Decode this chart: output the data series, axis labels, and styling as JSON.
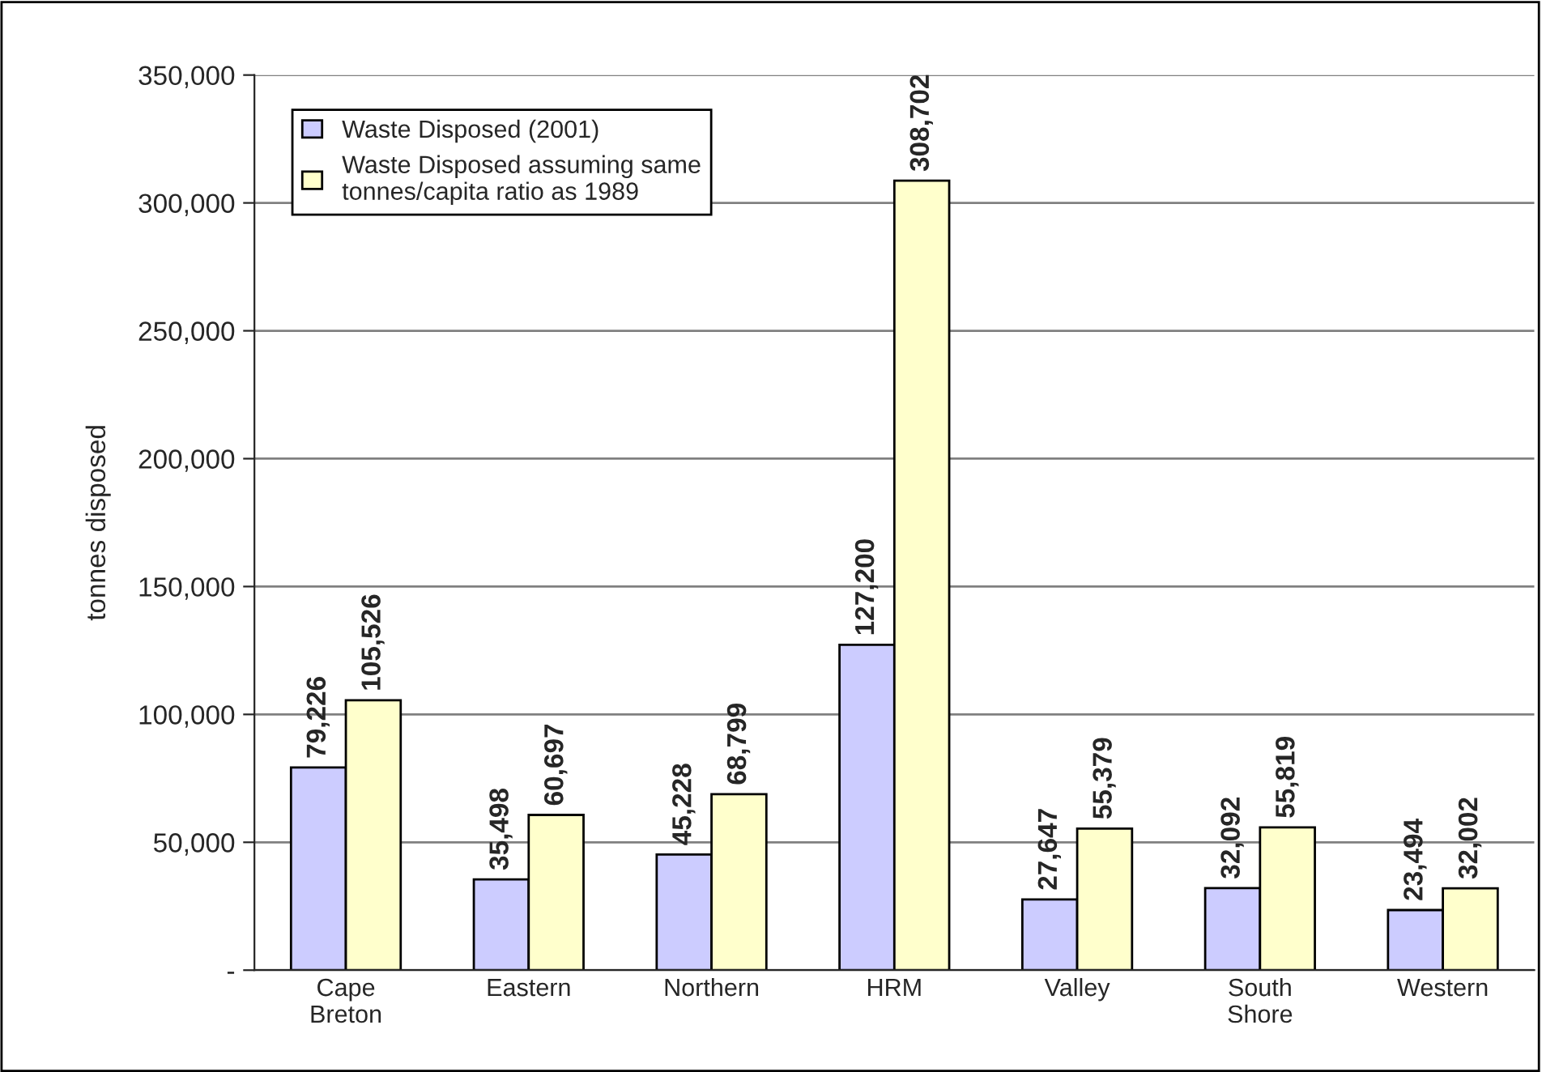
{
  "chart_data": {
    "type": "bar",
    "ylabel": "tonnes disposed",
    "categories": [
      "Cape Breton",
      "Eastern",
      "Northern",
      "HRM",
      "Valley",
      "South Shore",
      "Western"
    ],
    "series": [
      {
        "name": "Waste Disposed (2001)",
        "color": "#ccccff",
        "values": [
          79226,
          35498,
          45228,
          127200,
          27647,
          32092,
          23494
        ],
        "value_labels": [
          "79,226",
          "35,498",
          "45,228",
          "127,200",
          "27,647",
          "32,092",
          "23,494"
        ]
      },
      {
        "name": "Waste Disposed assuming same tonnes/capita ratio as 1989",
        "color": "#ffffcc",
        "values": [
          105526,
          60697,
          68799,
          308702,
          55379,
          55819,
          32002
        ],
        "value_labels": [
          "105,526",
          "60,697",
          "68,799",
          "308,702",
          "55,379",
          "55,819",
          "32,002"
        ]
      }
    ],
    "ylim": [
      0,
      350000
    ],
    "yticks": [
      {
        "value": 0,
        "label": "-"
      },
      {
        "value": 50000,
        "label": "50,000"
      },
      {
        "value": 100000,
        "label": "100,000"
      },
      {
        "value": 150000,
        "label": "150,000"
      },
      {
        "value": 200000,
        "label": "200,000"
      },
      {
        "value": 250000,
        "label": "250,000"
      },
      {
        "value": 300000,
        "label": "300,000"
      },
      {
        "value": 350000,
        "label": "350,000"
      }
    ],
    "grid": "y",
    "legend": "top left"
  }
}
